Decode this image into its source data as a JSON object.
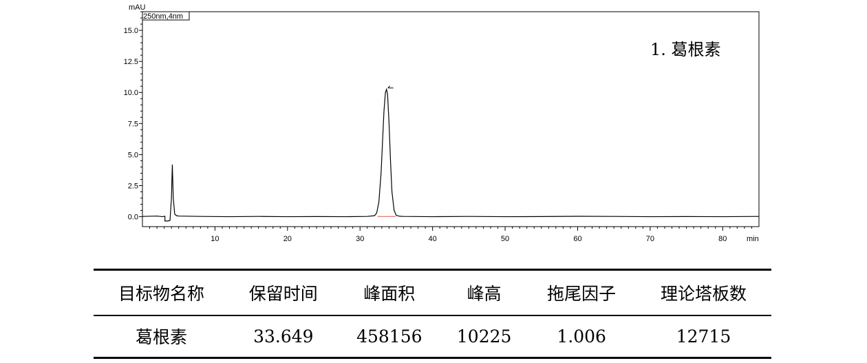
{
  "chart_data": {
    "type": "line",
    "ylabel": "mAU",
    "xunit": "min",
    "legend_box": "250nm,4nm",
    "annotation": "1.  葛根素",
    "xlim": [
      0,
      85
    ],
    "ylim": [
      -0.8,
      16.5
    ],
    "xticks": [
      10,
      20,
      30,
      40,
      50,
      60,
      70,
      80
    ],
    "yticks": [
      0.0,
      2.5,
      5.0,
      7.5,
      10.0,
      12.5,
      15.0
    ],
    "ytick_labels": [
      "0.0",
      "2.5",
      "5.0",
      "7.5",
      "10.0",
      "12.5",
      "15.0"
    ],
    "series": [
      {
        "color": "#000000",
        "x": [
          0.0,
          2.0,
          2.8,
          3.0,
          3.1,
          3.1,
          3.2,
          3.5,
          3.8,
          4.0,
          4.12,
          4.25,
          4.45,
          4.7,
          5.0,
          8.0,
          12.0,
          16.0,
          20.0,
          24.0,
          28.0,
          31.0,
          32.0,
          32.3,
          32.6,
          32.9,
          33.1,
          33.3,
          33.5,
          33.649,
          33.8,
          34.0,
          34.2,
          34.4,
          34.7,
          35.0,
          35.5,
          36.0,
          40.0,
          45.0,
          50.0,
          55.0,
          60.0,
          65.0,
          70.0,
          75.0,
          80.0,
          85.0
        ],
        "y": [
          0.02,
          0.05,
          0.0,
          0.03,
          0.03,
          -0.35,
          -0.35,
          -0.35,
          -0.3,
          1.5,
          4.2,
          1.5,
          0.2,
          0.08,
          0.05,
          0.02,
          0.0,
          0.02,
          0.0,
          0.01,
          0.0,
          0.02,
          0.08,
          0.3,
          1.2,
          3.5,
          6.0,
          8.5,
          10.0,
          10.25,
          9.8,
          7.5,
          4.5,
          2.0,
          0.5,
          0.1,
          0.03,
          0.02,
          0.0,
          0.02,
          0.0,
          0.01,
          0.03,
          0.02,
          0.0,
          0.01,
          0.0,
          0.02
        ]
      }
    ],
    "baseline_color": "#e05050"
  },
  "results_table": {
    "headers": [
      "目标物名称",
      "保留时间",
      "峰面积",
      "峰高",
      "拖尾因子",
      "理论塔板数"
    ],
    "rows": [
      [
        "葛根素",
        "33.649",
        "458156",
        "10225",
        "1.006",
        "12715"
      ]
    ]
  }
}
